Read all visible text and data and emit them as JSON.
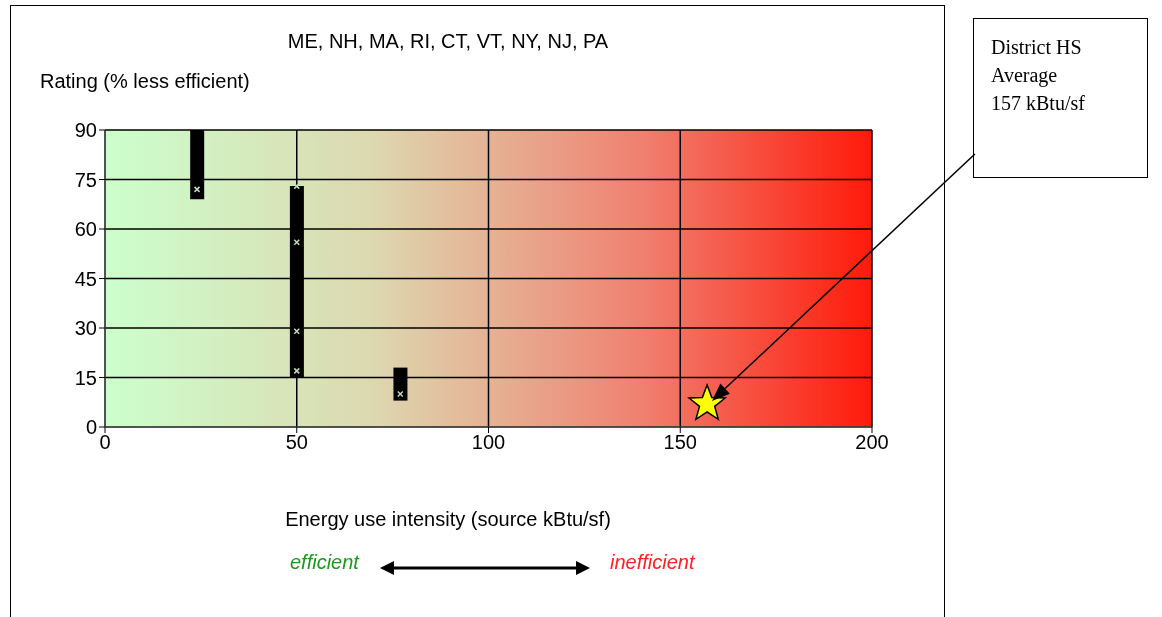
{
  "chart_data": {
    "type": "scatter",
    "title": "ME, NH, MA, RI, CT, VT, NY, NJ, PA",
    "ylabel": "Rating (% less efficient)",
    "xlabel": "Energy use intensity (source kBtu/sf)",
    "annotations": [
      "District HS Average 157 kBtu/sf",
      "efficient",
      "inefficient"
    ],
    "xlim": [
      0,
      200
    ],
    "xticks": [
      0,
      50,
      100,
      150,
      200
    ],
    "ylim": [
      0,
      90
    ],
    "yticks": [
      0,
      15,
      30,
      45,
      60,
      75,
      90
    ],
    "grid": true,
    "series": [
      {
        "type": "bar",
        "color": "#000000",
        "x": [
          24,
          50,
          77
        ],
        "base": [
          69,
          15,
          8
        ],
        "values": [
          21,
          58,
          10
        ]
      },
      {
        "color": "#c0dcc0",
        "marker": "cross",
        "x": [
          24,
          50,
          50,
          50,
          50,
          77
        ],
        "values": [
          72,
          73,
          56,
          29,
          17,
          10
        ]
      },
      {
        "color": "#ffff00",
        "marker": "star",
        "x": [
          157
        ],
        "values": [
          7
        ]
      }
    ]
  }
}
